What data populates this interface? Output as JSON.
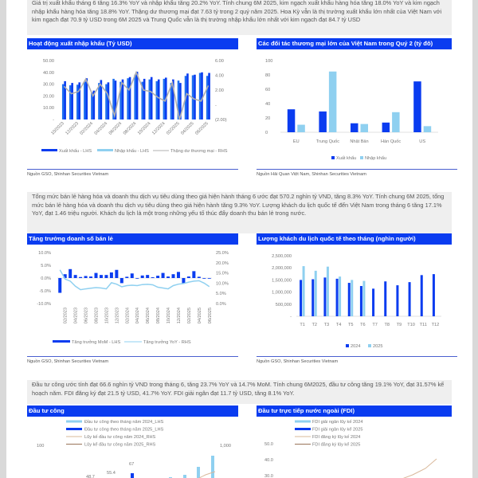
{
  "sections": [
    {
      "paragraph": "Giá trị xuất khẩu tháng 6 tăng 16.3% YoY và nhập khẩu tăng 20.2% YoY. Tính chung 6M 2025, kim ngạch xuất khẩu hàng hóa tăng 18.0% YoY và kim ngạch nhập khẩu hàng hóa tăng 18.8% YoY. Thặng dư thương mại đạt 7.63 tỷ trong 2 quý năm 2025. Hoa Kỳ vẫn là thị trường xuất khẩu lớn nhất của Việt Nam với kim ngạch đạt 70.9 tỷ USD trong 6M 2025 và Trung Quốc vẫn là thị trường nhập khẩu lớn nhất với kim ngạch đạt 84.7 tỷ USD",
      "left_title": "Hoạt động xuất nhập khẩu (Tỷ USD)",
      "right_title": "Các đối tác thương mại lớn của Việt Nam trong Quý 2 (tỷ đô)",
      "left_source": "Nguồn GSO, Shinhan Securities Vietnam",
      "right_source": "Nguồn Hải Quan Việt Nam, Shinhan Securities Vietnam"
    },
    {
      "paragraph": "Tổng mức bán lẻ hàng hóa và doanh thu dịch vụ tiêu dùng theo giá hiện hành tháng 6 ước đạt 570.2 nghìn tỷ VND, tăng 8.3% YoY. Tính chung 6M 2025, tổng mức bán lẻ hàng hóa và doanh thu dịch vụ tiêu dùng theo giá hiện hành tăng 9.3% YoY. Lượng khách du lịch quốc tế đến Việt Nam trong tháng 6 tăng 17.1% YoY, đạt 1.46 triệu người. Khách du lịch là một trong những yếu tố thúc đẩy doanh thu bán lẻ trong nước.",
      "left_title": "Tăng trưởng doanh số bán lẻ",
      "right_title": "Lượng khách du lịch quốc tế theo tháng (nghìn người)",
      "left_source": "Nguồn GSO, Shinhan Securities Vietnam",
      "right_source": "Nguồn GSO, Shinhan Securities Vietnam"
    },
    {
      "paragraph": "Đầu tư công ước tính đạt 66.6 nghìn tỷ VND trong tháng 6, tăng 23.7% YoY và 14.7% MoM. Tính chung 6M2025, đầu tư công tăng 19.1% YoY, đạt 31.57% kế hoạch năm. FDI đăng ký đạt 21.5 tỷ USD, 41.7% YoY. FDI giải ngân đạt 11.7 tỷ USD, tăng 8.1% YoY.",
      "left_title": "Đầu tư công",
      "right_title": "Đầu tư trực tiếp nước ngoài (FDI)"
    }
  ],
  "colors": {
    "dark_blue": "#0a3cf0",
    "light_blue": "#8fd0f0",
    "gray_line": "#b0b0b0",
    "tan_light": "#d9b89a",
    "tan_dark": "#9a7458"
  },
  "chart_data": [
    {
      "type": "bar",
      "title": "Hoạt động xuất nhập khẩu (Tỷ USD)",
      "categories": [
        "10/2023",
        "11/2023",
        "12/2023",
        "01/2024",
        "02/2024",
        "03/2024",
        "04/2024",
        "05/2024",
        "06/2024",
        "07/2024",
        "08/2024",
        "09/2024",
        "10/2024",
        "11/2024",
        "12/2024",
        "01/2025",
        "02/2025",
        "03/2025",
        "04/2025",
        "05/2025",
        "06/2025"
      ],
      "tick_labels": [
        "10/2023",
        "12/2023",
        "02/2024",
        "04/2024",
        "06/2024",
        "08/2024",
        "10/2024",
        "12/2024",
        "02/2025",
        "04/2025",
        "06/2025"
      ],
      "series": [
        {
          "name": "Xuất khẩu - LHS",
          "axis": "left",
          "values": [
            32.5,
            31.0,
            31.5,
            35.0,
            24.5,
            33.5,
            31.5,
            33.0,
            34.0,
            36.0,
            40.5,
            34.5,
            36.0,
            34.0,
            35.5,
            34.0,
            31.0,
            39.0,
            38.0,
            40.0,
            39.5
          ]
        },
        {
          "name": "Nhập khẩu - LHS",
          "axis": "left",
          "values": [
            30.0,
            29.0,
            29.5,
            32.0,
            23.0,
            31.0,
            30.0,
            34.5,
            32.0,
            35.0,
            38.0,
            32.0,
            34.0,
            32.5,
            34.5,
            31.0,
            33.0,
            37.0,
            37.5,
            39.5,
            37.0
          ]
        },
        {
          "name": "Thặng dư thương mại - RHS",
          "axis": "right",
          "type": "line",
          "values": [
            2.5,
            1.5,
            1.8,
            3.5,
            1.2,
            2.8,
            1.5,
            -1.5,
            3.0,
            2.0,
            4.4,
            2.0,
            1.8,
            1.0,
            0.5,
            3.0,
            -2.0,
            1.5,
            0.8,
            0.5,
            2.6
          ]
        }
      ],
      "left_ticks": [
        "50.00",
        "40.00",
        "30.00",
        "20.00",
        "10.00",
        "-"
      ],
      "right_ticks": [
        "6.00",
        "4.00",
        "2.00",
        "-",
        "(2.00)"
      ],
      "ylim_left": [
        0,
        50
      ],
      "ylim_right": [
        -2,
        6
      ]
    },
    {
      "type": "bar",
      "title": "Các đối tác thương mại lớn của Việt Nam trong Quý 2 (tỷ đô)",
      "categories": [
        "EU",
        "Trung Quốc",
        "Nhật Bản",
        "Hàn Quốc",
        "US"
      ],
      "series": [
        {
          "name": "Xuất khẩu",
          "values": [
            32,
            29,
            12.5,
            13.5,
            70.9
          ]
        },
        {
          "name": "Nhập khẩu",
          "values": [
            10.5,
            84.7,
            11.5,
            28,
            8.5
          ]
        }
      ],
      "y_ticks": [
        "100",
        "80",
        "60",
        "40",
        "20",
        "0"
      ],
      "ylim": [
        0,
        100
      ]
    },
    {
      "type": "bar",
      "title": "Tăng trưởng doanh số bán lẻ",
      "categories": [
        "01/2023",
        "02/2023",
        "03/2023",
        "04/2023",
        "05/2023",
        "06/2023",
        "07/2023",
        "08/2023",
        "09/2023",
        "10/2023",
        "11/2023",
        "12/2023",
        "01/2024",
        "02/2024",
        "03/2024",
        "04/2024",
        "05/2024",
        "06/2024",
        "07/2024",
        "08/2024",
        "09/2024",
        "10/2024",
        "11/2024",
        "12/2024",
        "01/2025",
        "02/2025",
        "03/2025",
        "04/2025",
        "05/2025",
        "06/2025"
      ],
      "tick_labels": [
        "02/2023",
        "04/2023",
        "06/2023",
        "08/2023",
        "10/2023",
        "12/2023",
        "02/2024",
        "04/2024",
        "06/2024",
        "08/2024",
        "10/2024",
        "12/2024",
        "02/2025",
        "04/2025",
        "06/2025"
      ],
      "series": [
        {
          "name": "Tăng trưởng MoM - LHS",
          "axis": "left",
          "values": [
            -5.8,
            1.5,
            3.5,
            1.2,
            0.4,
            0.8,
            0.6,
            2.0,
            1.2,
            1.2,
            2.2,
            3.2,
            -2.0,
            0.5,
            1.8,
            0,
            1.0,
            1.2,
            0.3,
            0.9,
            2.0,
            0.6,
            1.5,
            2.4,
            -2.2,
            0.6,
            2.7,
            0.5,
            0,
            0
          ]
        },
        {
          "name": "Tăng trưởng YoY - RHS",
          "axis": "right",
          "type": "line",
          "values": [
            16.5,
            12,
            11,
            8.5,
            6.8,
            7.2,
            7.5,
            7.8,
            7.6,
            7.2,
            10.2,
            9.5,
            8.2,
            8.8,
            9.0,
            8.8,
            9.3,
            9.4,
            9.2,
            8.0,
            7.6,
            7.2,
            8.8,
            9.5,
            9.8,
            10.5,
            11.0,
            11.2,
            10.0,
            8.3
          ]
        }
      ],
      "left_ticks": [
        "10.0%",
        "5.0%",
        "0.0%",
        "-5.0%",
        "-10.0%"
      ],
      "right_ticks": [
        "25.0%",
        "20.0%",
        "15.0%",
        "10.0%",
        "5.0%",
        "0.0%"
      ],
      "ylim_left": [
        -10,
        10
      ],
      "ylim_right": [
        0,
        25
      ]
    },
    {
      "type": "bar",
      "title": "Lượng khách du lịch quốc tế theo tháng (nghìn người)",
      "categories": [
        "T1",
        "T2",
        "T3",
        "T4",
        "T5",
        "T6",
        "T7",
        "T8",
        "T9",
        "T10",
        "T11",
        "T12"
      ],
      "series": [
        {
          "name": "2024",
          "values": [
            1500000,
            1530000,
            1600000,
            1550000,
            1380000,
            1250000,
            1140000,
            1440000,
            1280000,
            1410000,
            1700000,
            1740000
          ]
        },
        {
          "name": "2025",
          "values": [
            2070000,
            1880000,
            2050000,
            1640000,
            1500000,
            1460000,
            null,
            null,
            null,
            null,
            null,
            null
          ]
        }
      ],
      "y_ticks": [
        "2,500,000",
        "2,000,000",
        "1,500,000",
        "1,000,000",
        "500,000",
        "-"
      ],
      "ylim": [
        0,
        2500000
      ]
    },
    {
      "type": "bar",
      "title": "Đầu tư công",
      "series": [
        {
          "name": "Đầu tư công theo tháng năm 2024_LHS"
        },
        {
          "name": "Đầu tư công theo tháng năm 2025_LHS"
        },
        {
          "name": "Lũy kế đầu tư công năm 2024_RHS"
        },
        {
          "name": "Lũy kế đầu tư công năm 2025_RHS"
        }
      ],
      "data_labels": [
        "48.7",
        "55.4",
        "67"
      ],
      "left_ticks": [
        "100"
      ],
      "right_ticks": [
        "1,000"
      ]
    },
    {
      "type": "line",
      "title": "Đầu tư trực tiếp nước ngoài (FDI)",
      "series": [
        {
          "name": "FDI giải ngân lũy kế 2024"
        },
        {
          "name": "FDI giải ngân lũy kế 2025"
        },
        {
          "name": "FDI đăng ký lũy kế 2024"
        },
        {
          "name": "FDI đăng ký lũy kế 2025"
        }
      ],
      "y_ticks": [
        "50.0",
        "40.0",
        "30.0"
      ]
    }
  ]
}
